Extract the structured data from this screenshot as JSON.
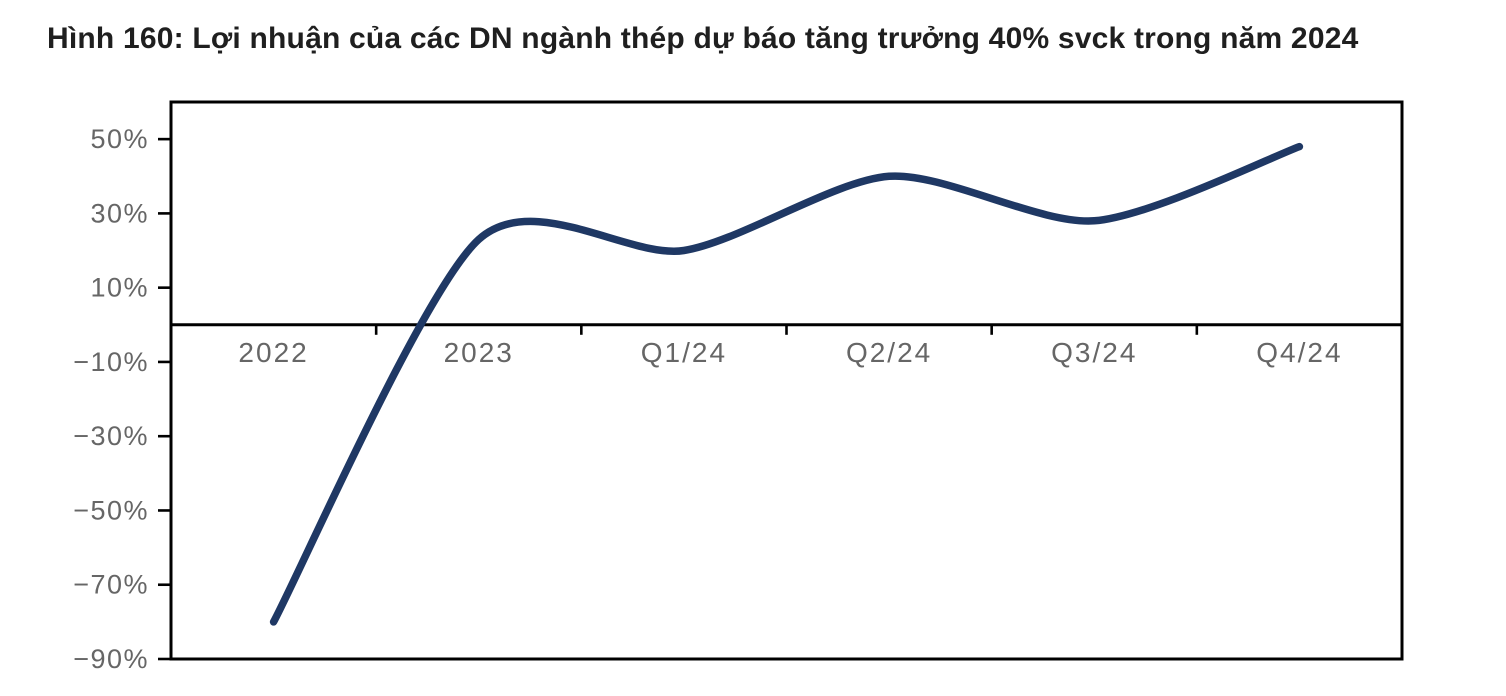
{
  "chart_data": {
    "type": "line",
    "title": "Hình 160: Lợi nhuận của các DN ngành thép dự báo tăng trưởng 40% svck trong năm 2024",
    "categories": [
      "2022",
      "2023",
      "Q1/24",
      "Q2/24",
      "Q3/24",
      "Q4/24"
    ],
    "series": [
      {
        "name": "",
        "values": [
          -80,
          23,
          20,
          40,
          28,
          48
        ]
      }
    ],
    "smooth": true,
    "xlabel": "",
    "ylabel": "",
    "ylim": [
      -90,
      60
    ],
    "yticks": [
      50,
      30,
      10,
      -10,
      -30,
      -50,
      -70,
      -90
    ],
    "ytick_suffix": "%",
    "grid": false,
    "legend_position": "none",
    "baseline_at_zero": true,
    "colors": {
      "line": "#1f3864",
      "axis": "#000000",
      "tick_labels": "#666666",
      "title": "#1f1f1f",
      "background": "#ffffff"
    }
  }
}
